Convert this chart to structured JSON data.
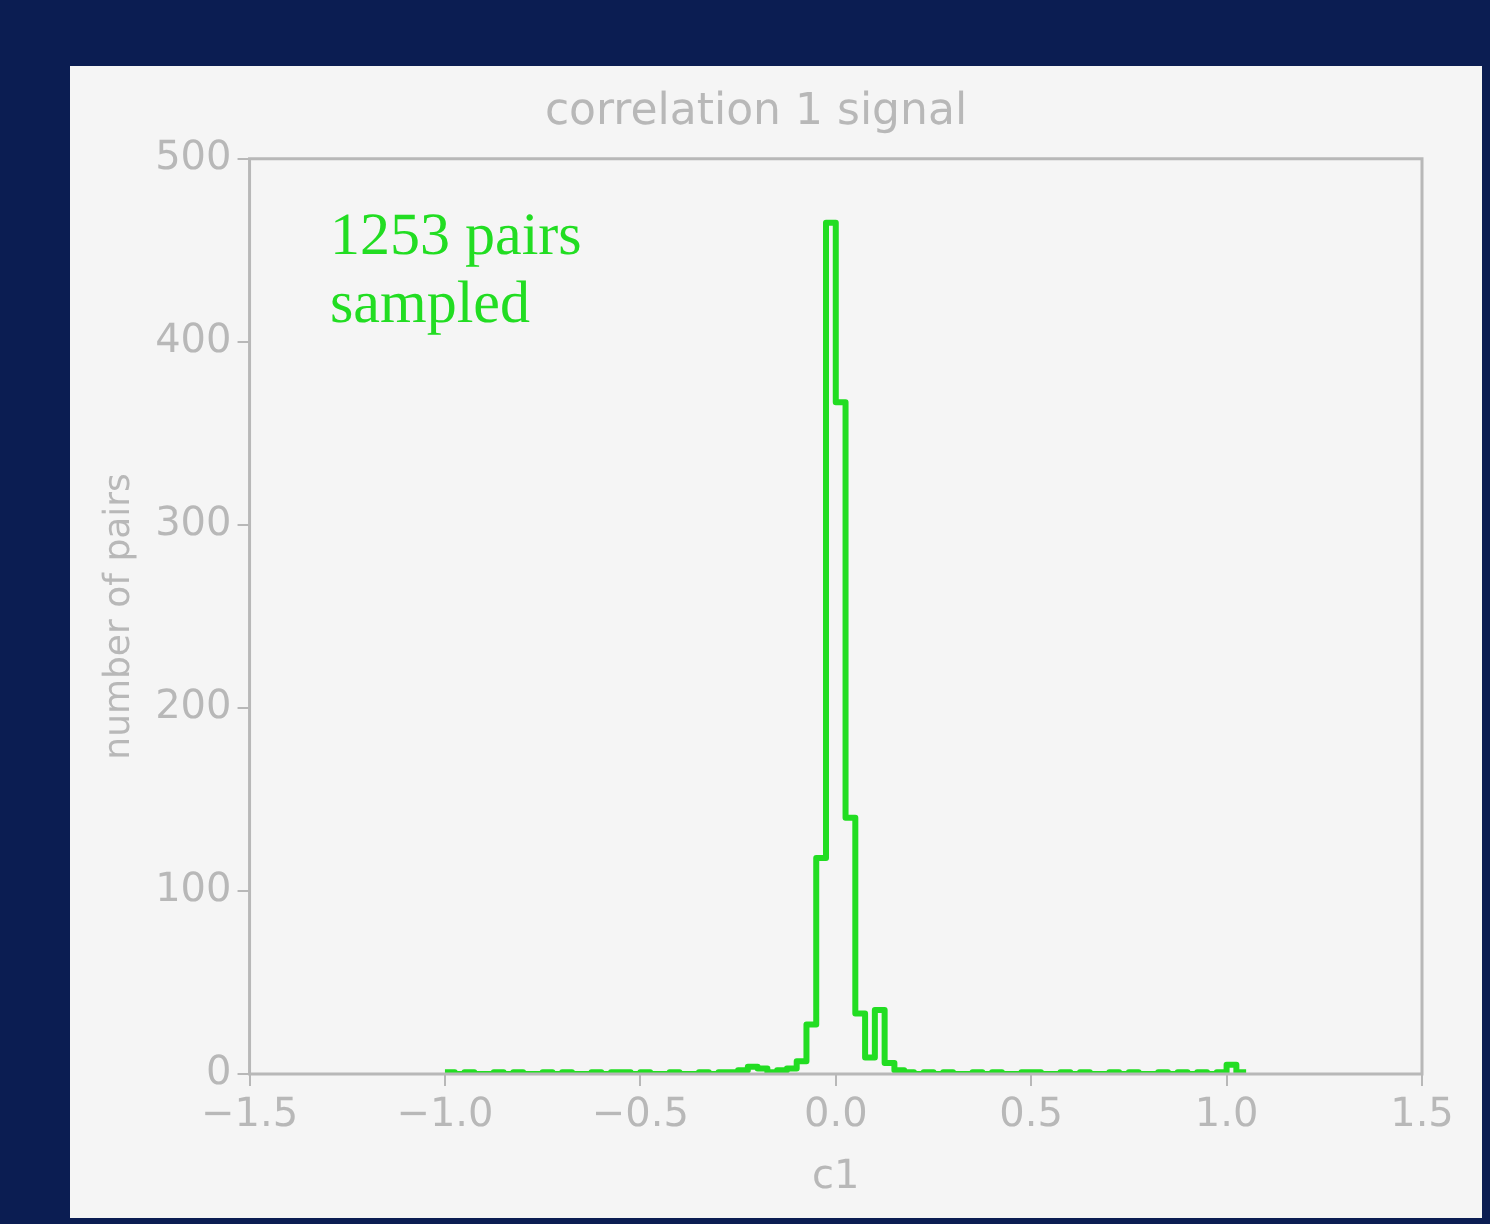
{
  "chart_data": {
    "type": "histogram",
    "title": "correlation 1 signal",
    "xlabel": "c1",
    "ylabel": "number of pairs",
    "annotations": [
      "1253 pairs sampled"
    ],
    "bins": [
      -1.0,
      -0.975,
      -0.95,
      -0.925,
      -0.9,
      -0.875,
      -0.85,
      -0.825,
      -0.8,
      -0.775,
      -0.75,
      -0.725,
      -0.7,
      -0.675,
      -0.65,
      -0.625,
      -0.6,
      -0.575,
      -0.55,
      -0.525,
      -0.5,
      -0.475,
      -0.45,
      -0.425,
      -0.4,
      -0.375,
      -0.35,
      -0.325,
      -0.3,
      -0.275,
      -0.25,
      -0.225,
      -0.2,
      -0.175,
      -0.15,
      -0.125,
      -0.1,
      -0.075,
      -0.05,
      -0.025,
      0,
      0.025,
      0.05,
      0.075,
      0.1,
      0.125,
      0.15,
      0.175,
      0.2,
      0.225,
      0.25,
      0.275,
      0.3,
      0.325,
      0.35,
      0.375,
      0.4,
      0.425,
      0.45,
      0.475,
      0.5,
      0.525,
      0.55,
      0.575,
      0.6,
      0.625,
      0.65,
      0.675,
      0.7,
      0.725,
      0.75,
      0.775,
      0.8,
      0.825,
      0.85,
      0.875,
      0.9,
      0.925,
      0.95,
      0.975,
      1.0,
      1.025,
      1.05
    ],
    "values": [
      1,
      0,
      1,
      0,
      0,
      1,
      0,
      1,
      0,
      0,
      1,
      0,
      1,
      0,
      0,
      1,
      0,
      1,
      1,
      0,
      1,
      0,
      0,
      1,
      0,
      0,
      1,
      0,
      1,
      1,
      2,
      4,
      3,
      1,
      2,
      3,
      7,
      27,
      118,
      465,
      367,
      140,
      33,
      9,
      35,
      6,
      2,
      1,
      0,
      1,
      0,
      1,
      0,
      0,
      1,
      0,
      1,
      0,
      0,
      1,
      1,
      0,
      0,
      1,
      0,
      1,
      0,
      0,
      1,
      0,
      1,
      0,
      0,
      1,
      0,
      1,
      0,
      1,
      0,
      1,
      5,
      1
    ],
    "color": "#22dd22",
    "xlim": [
      -1.5,
      1.5
    ],
    "xticks": [
      {
        "value": -1.5,
        "label": "−1.5"
      },
      {
        "value": -1.0,
        "label": "−1.0"
      },
      {
        "value": -0.5,
        "label": "−0.5"
      },
      {
        "value": 0,
        "label": "0.0"
      },
      0.5,
      {
        "value": 1.0,
        "label": "1.0"
      },
      1.5
    ],
    "ylim": [
      0,
      500
    ],
    "yticks": [
      0,
      100,
      200,
      300,
      400,
      500
    ],
    "grid": false,
    "legend": false
  }
}
